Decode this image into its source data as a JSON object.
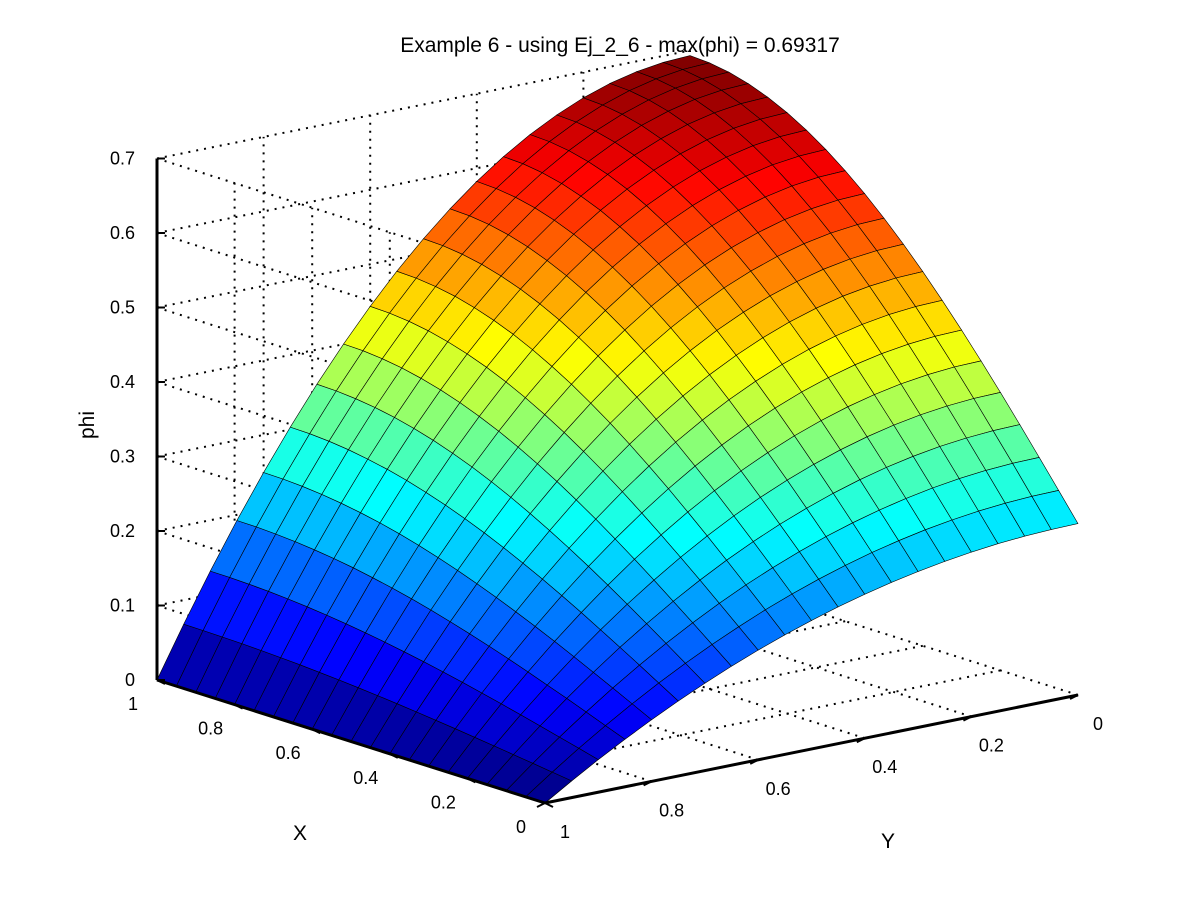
{
  "chart_data": {
    "type": "surface",
    "title": "Example 6 - using Ej_2_6 - max(phi) = 0.69317",
    "xlabel": "X",
    "ylabel": "Y",
    "zlabel": "phi",
    "xlim": [
      0,
      1
    ],
    "ylim": [
      0,
      1
    ],
    "zlim": [
      0,
      0.7
    ],
    "x_ticks": [
      0,
      0.2,
      0.4,
      0.6,
      0.8,
      1
    ],
    "x_tick_labels": [
      "0",
      "0.2",
      "0.4",
      "0.6",
      "0.8",
      "1"
    ],
    "y_ticks": [
      0,
      0.2,
      0.4,
      0.6,
      0.8,
      1
    ],
    "y_tick_labels": [
      "0",
      "0.2",
      "0.4",
      "0.6",
      "0.8",
      "1"
    ],
    "z_ticks": [
      0,
      0.1,
      0.2,
      0.3,
      0.4,
      0.5,
      0.6,
      0.7
    ],
    "z_tick_labels": [
      "0",
      "0.1",
      "0.2",
      "0.3",
      "0.4",
      "0.5",
      "0.6",
      "0.7"
    ],
    "grid": true,
    "colormap": "jet",
    "mesh_resolution": 21,
    "max_value": 0.69317,
    "corner_values": [
      {
        "x": 1,
        "y": 0,
        "phi": 0.69317
      },
      {
        "x": 1,
        "y": 1,
        "phi": 0.0
      },
      {
        "x": 0,
        "y": 1,
        "phi": 0.0
      },
      {
        "x": 0,
        "y": 0,
        "phi": 0.23
      }
    ]
  }
}
